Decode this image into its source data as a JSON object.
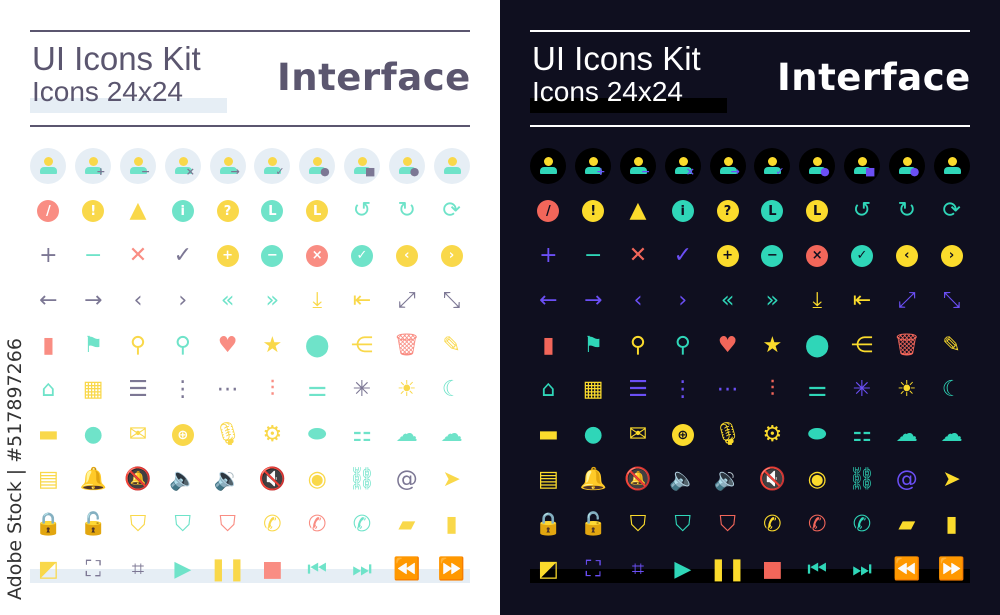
{
  "header": {
    "title": "UI Icons Kit",
    "subtitle": "Icons 24x24",
    "category": "Interface"
  },
  "watermark": "Adobe Stock | #517897266",
  "colors": {
    "light_bg": "#ffffff",
    "dark_bg": "#0f0f1f",
    "yellow": "#f9d84a",
    "teal": "#6fe3c9",
    "coral": "#f98d83",
    "gray": "#7c7794",
    "purple_dark": "#6b4ff5"
  },
  "icons": [
    {
      "name": "user",
      "type": "user",
      "badge": ""
    },
    {
      "name": "user-add",
      "type": "user",
      "badge": "+"
    },
    {
      "name": "user-remove",
      "type": "user",
      "badge": "−"
    },
    {
      "name": "user-delete",
      "type": "user",
      "badge": "×"
    },
    {
      "name": "user-forward",
      "type": "user",
      "badge": "→"
    },
    {
      "name": "user-check",
      "type": "user",
      "badge": "✓"
    },
    {
      "name": "user-shield",
      "type": "user",
      "badge": "●"
    },
    {
      "name": "user-lock",
      "type": "user",
      "badge": "■"
    },
    {
      "name": "users",
      "type": "user",
      "badge": "●"
    },
    {
      "name": "user-circle",
      "type": "user",
      "badge": ""
    },
    {
      "name": "ban",
      "type": "dot",
      "glyph": "/",
      "role": "r"
    },
    {
      "name": "alert-circle",
      "type": "dot",
      "glyph": "!",
      "role": "y"
    },
    {
      "name": "warning",
      "type": "glyph",
      "glyph": "▲",
      "role": "y"
    },
    {
      "name": "info",
      "type": "dot",
      "glyph": "i",
      "role": "t"
    },
    {
      "name": "help",
      "type": "dot",
      "glyph": "?",
      "role": "y"
    },
    {
      "name": "clock",
      "type": "dot",
      "glyph": "L",
      "role": "t"
    },
    {
      "name": "history",
      "type": "dot",
      "glyph": "L",
      "role": "y"
    },
    {
      "name": "undo",
      "type": "glyph",
      "glyph": "↺",
      "role": "t"
    },
    {
      "name": "redo",
      "type": "glyph",
      "glyph": "↻",
      "role": "t"
    },
    {
      "name": "refresh",
      "type": "glyph",
      "glyph": "⟳",
      "role": "t"
    },
    {
      "name": "plus",
      "type": "glyph",
      "glyph": "+",
      "role": "g"
    },
    {
      "name": "minus",
      "type": "glyph",
      "glyph": "−",
      "role": "t"
    },
    {
      "name": "close",
      "type": "glyph",
      "glyph": "✕",
      "role": "r"
    },
    {
      "name": "check",
      "type": "glyph",
      "glyph": "✓",
      "role": "g"
    },
    {
      "name": "plus-circle",
      "type": "dot",
      "glyph": "+",
      "role": "y"
    },
    {
      "name": "minus-circle",
      "type": "dot",
      "glyph": "−",
      "role": "t"
    },
    {
      "name": "close-circle",
      "type": "dot",
      "glyph": "×",
      "role": "r"
    },
    {
      "name": "check-circle",
      "type": "dot",
      "glyph": "✓",
      "role": "t"
    },
    {
      "name": "chevron-left-circle",
      "type": "dot",
      "glyph": "‹",
      "role": "y"
    },
    {
      "name": "chevron-right-circle",
      "type": "dot",
      "glyph": "›",
      "role": "y"
    },
    {
      "name": "arrow-left",
      "type": "glyph",
      "glyph": "←",
      "role": "g"
    },
    {
      "name": "arrow-right",
      "type": "glyph",
      "glyph": "→",
      "role": "g"
    },
    {
      "name": "chevron-left",
      "type": "glyph",
      "glyph": "‹",
      "role": "g"
    },
    {
      "name": "chevron-right",
      "type": "glyph",
      "glyph": "›",
      "role": "g"
    },
    {
      "name": "chevrons-left",
      "type": "glyph",
      "glyph": "«",
      "role": "t"
    },
    {
      "name": "chevrons-right",
      "type": "glyph",
      "glyph": "»",
      "role": "t"
    },
    {
      "name": "download",
      "type": "glyph",
      "glyph": "⤓",
      "role": "y"
    },
    {
      "name": "log-in",
      "type": "glyph",
      "glyph": "⇤",
      "role": "y"
    },
    {
      "name": "maximize",
      "type": "glyph",
      "glyph": "⤢",
      "role": "g"
    },
    {
      "name": "minimize",
      "type": "glyph",
      "glyph": "⤡",
      "role": "g"
    },
    {
      "name": "bookmark",
      "type": "glyph",
      "glyph": "▮",
      "role": "r"
    },
    {
      "name": "flag",
      "type": "glyph",
      "glyph": "⚑",
      "role": "t"
    },
    {
      "name": "pin",
      "type": "glyph",
      "glyph": "⚲",
      "role": "y"
    },
    {
      "name": "search",
      "type": "glyph",
      "glyph": "⚲",
      "role": "t"
    },
    {
      "name": "heart",
      "type": "glyph",
      "glyph": "♥",
      "role": "r"
    },
    {
      "name": "star",
      "type": "glyph",
      "glyph": "★",
      "role": "y"
    },
    {
      "name": "location",
      "type": "glyph",
      "glyph": "⬤",
      "role": "t"
    },
    {
      "name": "share",
      "type": "glyph",
      "glyph": "⋲",
      "role": "y"
    },
    {
      "name": "trash",
      "type": "glyph",
      "glyph": "🗑",
      "role": "r"
    },
    {
      "name": "edit",
      "type": "glyph",
      "glyph": "✎",
      "role": "y"
    },
    {
      "name": "home",
      "type": "glyph",
      "glyph": "⌂",
      "role": "t"
    },
    {
      "name": "grid",
      "type": "glyph",
      "glyph": "▦",
      "role": "y"
    },
    {
      "name": "menu",
      "type": "glyph",
      "glyph": "☰",
      "role": "g"
    },
    {
      "name": "more-vertical",
      "type": "glyph",
      "glyph": "⋮",
      "role": "g"
    },
    {
      "name": "more-horizontal",
      "type": "glyph",
      "glyph": "⋯",
      "role": "g"
    },
    {
      "name": "equalizer",
      "type": "glyph",
      "glyph": "⫶",
      "role": "r"
    },
    {
      "name": "sliders",
      "type": "glyph",
      "glyph": "⚌",
      "role": "t"
    },
    {
      "name": "loader",
      "type": "glyph",
      "glyph": "✳",
      "role": "g"
    },
    {
      "name": "sun",
      "type": "glyph",
      "glyph": "☀",
      "role": "y"
    },
    {
      "name": "moon",
      "type": "glyph",
      "glyph": "☾",
      "role": "t"
    },
    {
      "name": "comment",
      "type": "glyph",
      "glyph": "▬",
      "role": "y"
    },
    {
      "name": "chat",
      "type": "glyph",
      "glyph": "●",
      "role": "t"
    },
    {
      "name": "mail",
      "type": "glyph",
      "glyph": "✉",
      "role": "y"
    },
    {
      "name": "globe",
      "type": "dot",
      "glyph": "⊕",
      "role": "y"
    },
    {
      "name": "microphone",
      "type": "glyph",
      "glyph": "🎙",
      "role": "y"
    },
    {
      "name": "gear",
      "type": "glyph",
      "glyph": "⚙",
      "role": "y"
    },
    {
      "name": "toggle",
      "type": "glyph",
      "glyph": "⬬",
      "role": "t"
    },
    {
      "name": "toggles",
      "type": "glyph",
      "glyph": "⚏",
      "role": "t"
    },
    {
      "name": "cloud",
      "type": "glyph",
      "glyph": "☁",
      "role": "t"
    },
    {
      "name": "cloud-upload",
      "type": "glyph",
      "glyph": "☁",
      "role": "t"
    },
    {
      "name": "calendar",
      "type": "glyph",
      "glyph": "▤",
      "role": "y"
    },
    {
      "name": "bell",
      "type": "glyph",
      "glyph": "🔔",
      "role": "t"
    },
    {
      "name": "bell-off",
      "type": "glyph",
      "glyph": "🔕",
      "role": "r"
    },
    {
      "name": "volume",
      "type": "glyph",
      "glyph": "🔈",
      "role": "y"
    },
    {
      "name": "volume-up",
      "type": "glyph",
      "glyph": "🔉",
      "role": "t"
    },
    {
      "name": "volume-mute",
      "type": "glyph",
      "glyph": "🔇",
      "role": "r"
    },
    {
      "name": "eye",
      "type": "glyph",
      "glyph": "◉",
      "role": "y"
    },
    {
      "name": "link",
      "type": "glyph",
      "glyph": "⛓",
      "role": "t"
    },
    {
      "name": "at",
      "type": "glyph",
      "glyph": "@",
      "role": "g"
    },
    {
      "name": "send",
      "type": "glyph",
      "glyph": "➤",
      "role": "y"
    },
    {
      "name": "lock",
      "type": "glyph",
      "glyph": "🔒",
      "role": "r"
    },
    {
      "name": "unlock",
      "type": "glyph",
      "glyph": "🔓",
      "role": "t"
    },
    {
      "name": "shield",
      "type": "glyph",
      "glyph": "⛉",
      "role": "y"
    },
    {
      "name": "shield-check",
      "type": "glyph",
      "glyph": "⛉",
      "role": "t"
    },
    {
      "name": "shield-alert",
      "type": "glyph",
      "glyph": "⛉",
      "role": "r"
    },
    {
      "name": "phone",
      "type": "glyph",
      "glyph": "✆",
      "role": "y"
    },
    {
      "name": "phone-missed",
      "type": "glyph",
      "glyph": "✆",
      "role": "r"
    },
    {
      "name": "phone-incoming",
      "type": "glyph",
      "glyph": "✆",
      "role": "t"
    },
    {
      "name": "folder",
      "type": "glyph",
      "glyph": "▰",
      "role": "y"
    },
    {
      "name": "file",
      "type": "glyph",
      "glyph": "▮",
      "role": "y"
    },
    {
      "name": "external-link",
      "type": "glyph",
      "glyph": "◩",
      "role": "y"
    },
    {
      "name": "fullscreen",
      "type": "glyph",
      "glyph": "⛶",
      "role": "g"
    },
    {
      "name": "exit-fullscreen",
      "type": "glyph",
      "glyph": "⌗",
      "role": "g"
    },
    {
      "name": "play",
      "type": "glyph",
      "glyph": "▶",
      "role": "t"
    },
    {
      "name": "pause",
      "type": "glyph",
      "glyph": "❚❚",
      "role": "y"
    },
    {
      "name": "stop",
      "type": "glyph",
      "glyph": "■",
      "role": "r"
    },
    {
      "name": "skip-back",
      "type": "glyph",
      "glyph": "⏮",
      "role": "t"
    },
    {
      "name": "skip-forward",
      "type": "glyph",
      "glyph": "⏭",
      "role": "t"
    },
    {
      "name": "rewind",
      "type": "glyph",
      "glyph": "⏪",
      "role": "t"
    },
    {
      "name": "fast-forward",
      "type": "glyph",
      "glyph": "⏩",
      "role": "t"
    }
  ]
}
